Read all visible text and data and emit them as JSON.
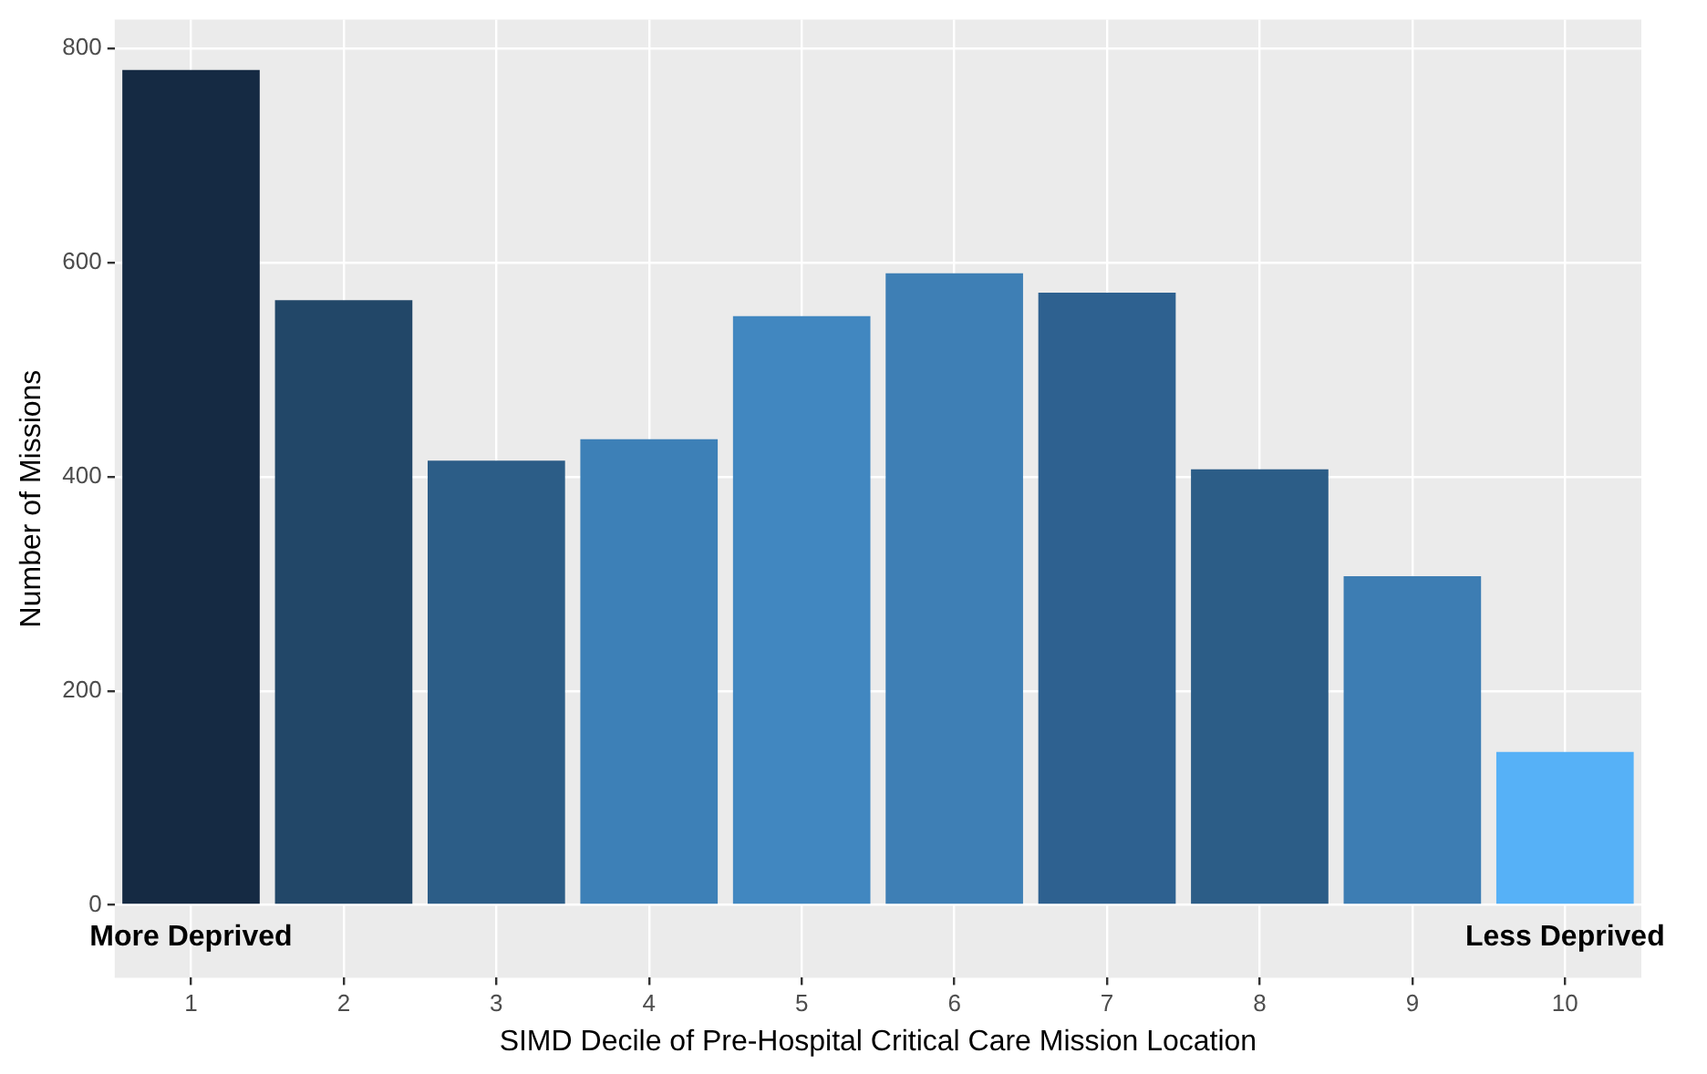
{
  "chart_data": {
    "type": "bar",
    "xlabel": "SIMD Decile of Pre-Hospital Critical Care Mission Location",
    "ylabel": "Number of Missions",
    "categories": [
      "1",
      "2",
      "3",
      "4",
      "5",
      "6",
      "7",
      "8",
      "9",
      "10"
    ],
    "values": [
      780,
      565,
      415,
      435,
      550,
      590,
      572,
      407,
      307,
      143
    ],
    "colors": [
      "#152a43",
      "#224768",
      "#2c5d87",
      "#3d80b7",
      "#4187c0",
      "#3e7fb5",
      "#2e6190",
      "#2c5d87",
      "#3d7db3",
      "#56b1f7"
    ],
    "ylim": [
      -68,
      827
    ],
    "yticks": [
      0,
      200,
      400,
      600,
      800
    ],
    "grid": true,
    "annotations": [
      "More Deprived",
      "Less Deprived"
    ]
  }
}
